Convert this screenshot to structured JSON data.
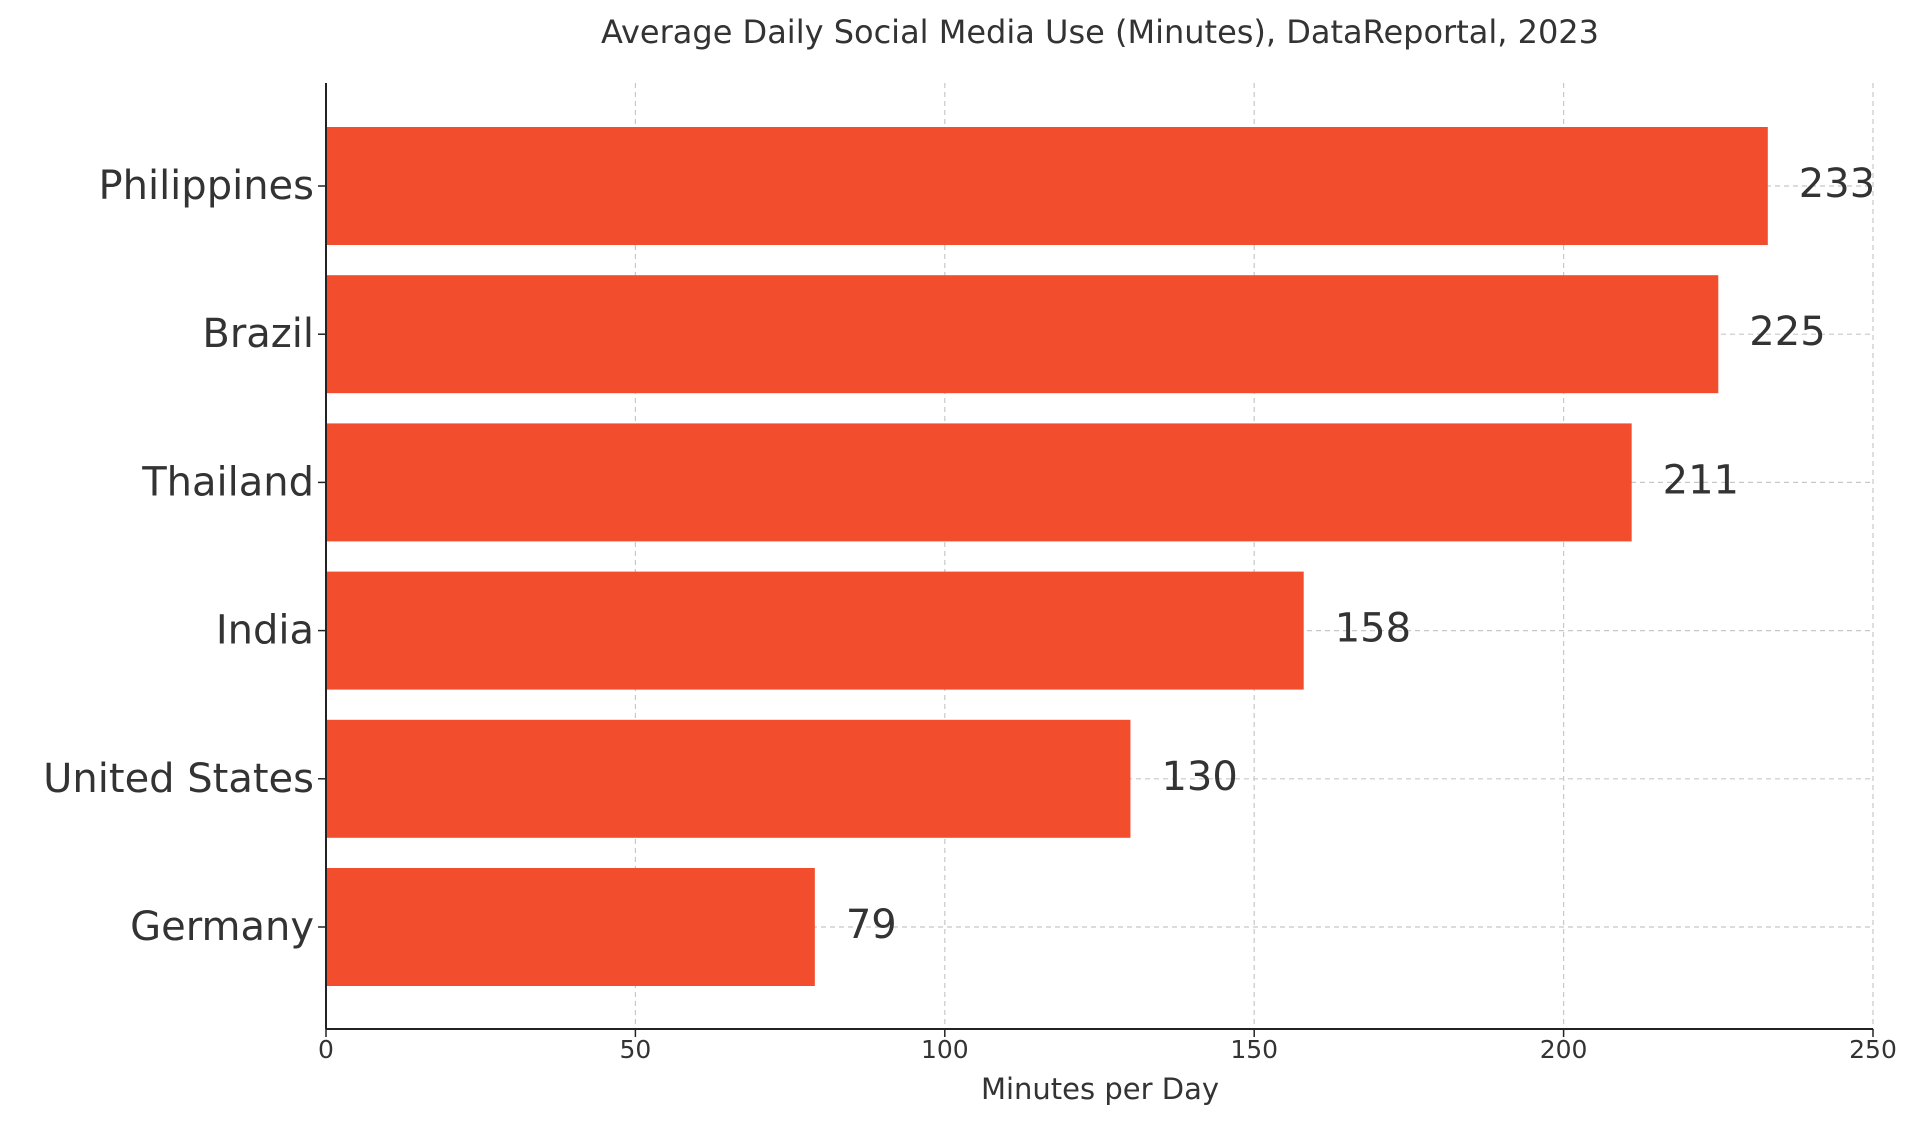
{
  "chart_data": {
    "type": "barh",
    "title": "Average Daily Social Media Use (Minutes), DataReportal, 2023",
    "xlabel": "Minutes per Day",
    "categories": [
      "Philippines",
      "Brazil",
      "Thailand",
      "India",
      "United States",
      "Germany"
    ],
    "values": [
      233,
      225,
      211,
      158,
      130,
      79
    ],
    "color": "#f24e2e",
    "xlim": [
      0,
      250
    ],
    "xticks": [
      0,
      50,
      100,
      150,
      200,
      250
    ],
    "grid": true
  }
}
